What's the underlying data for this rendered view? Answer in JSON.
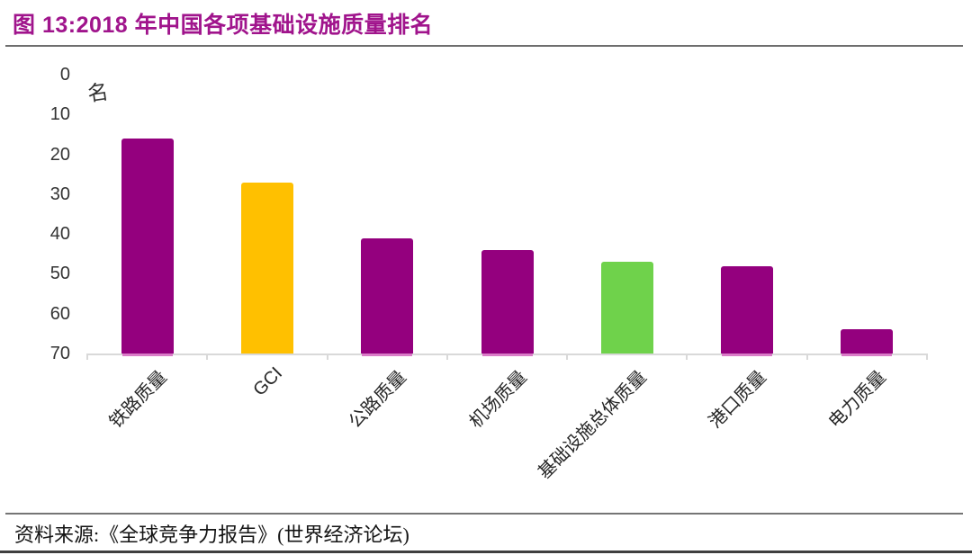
{
  "page": {
    "title": "图 13:2018 年中国各项基础设施质量排名",
    "source": "资料来源:《全球竞争力报告》(世界经济论坛)"
  },
  "colors": {
    "title_accent": "#A0148C",
    "bar_purple": "#94007E",
    "bar_gold": "#FFC000",
    "bar_green": "#6FD24B",
    "bar_bottom_edge": "#DA7CC8",
    "axis": "#D9D9D9",
    "tick_text": "#333333",
    "divider_gray": "#6E6E6E"
  },
  "chart_data": {
    "type": "bar",
    "title": "2018 年中国各项基础设施质量排名",
    "unit_label": "名",
    "categories": [
      "铁路质量",
      "GCI",
      "公路质量",
      "机场质量",
      "基础设施总体质量",
      "港口质量",
      "电力质量"
    ],
    "values": [
      16,
      27,
      41,
      44,
      47,
      48,
      64
    ],
    "bar_colors": [
      "#94007E",
      "#FFC000",
      "#94007E",
      "#94007E",
      "#6FD24B",
      "#94007E",
      "#94007E"
    ],
    "ylabel": "名",
    "xlabel": "",
    "ylim": [
      0,
      70
    ],
    "y_ticks": [
      0,
      10,
      20,
      30,
      40,
      50,
      60,
      70
    ],
    "y_axis_inverted": true,
    "grid": false,
    "legend": false
  }
}
